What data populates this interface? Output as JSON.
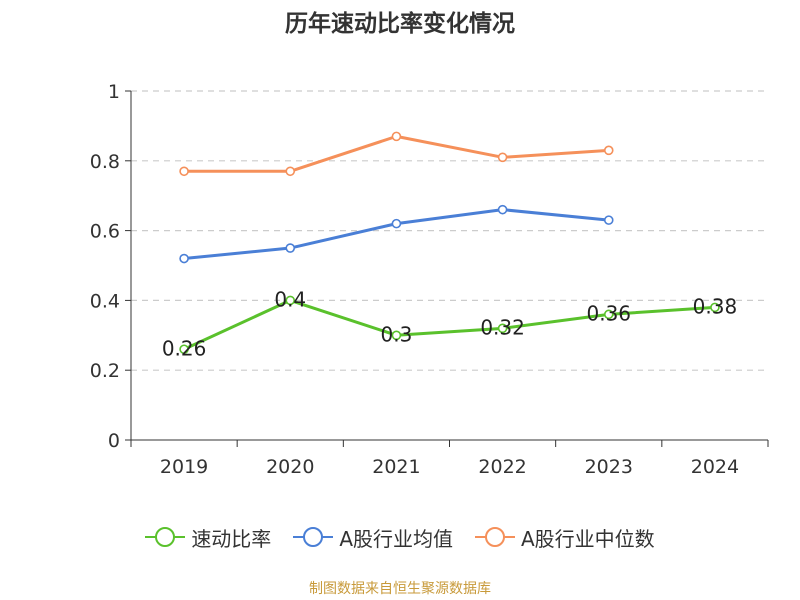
{
  "chart_data": {
    "type": "line",
    "title": "历年速动比率变化情况",
    "categories": [
      "2019",
      "2020",
      "2021",
      "2022",
      "2023",
      "2024"
    ],
    "ylim": [
      0,
      1
    ],
    "y_ticks": [
      "0",
      "0.2",
      "0.4",
      "0.6",
      "0.8",
      "1"
    ],
    "grid": true,
    "legend_position": "bottom",
    "series": [
      {
        "name": "速动比率",
        "color": "#5ac12c",
        "values": [
          0.26,
          0.4,
          0.3,
          0.32,
          0.36,
          0.38
        ],
        "labels": [
          "0.26",
          "0.4",
          "0.3",
          "0.32",
          "0.36",
          "0.38"
        ]
      },
      {
        "name": "A股行业均值",
        "color": "#4a7fd6",
        "values": [
          0.52,
          0.55,
          0.62,
          0.66,
          0.63,
          null
        ]
      },
      {
        "name": "A股行业中位数",
        "color": "#f5905a",
        "values": [
          0.77,
          0.77,
          0.87,
          0.81,
          0.83,
          null
        ]
      }
    ]
  },
  "footer": "制图数据来自恒生聚源数据库"
}
